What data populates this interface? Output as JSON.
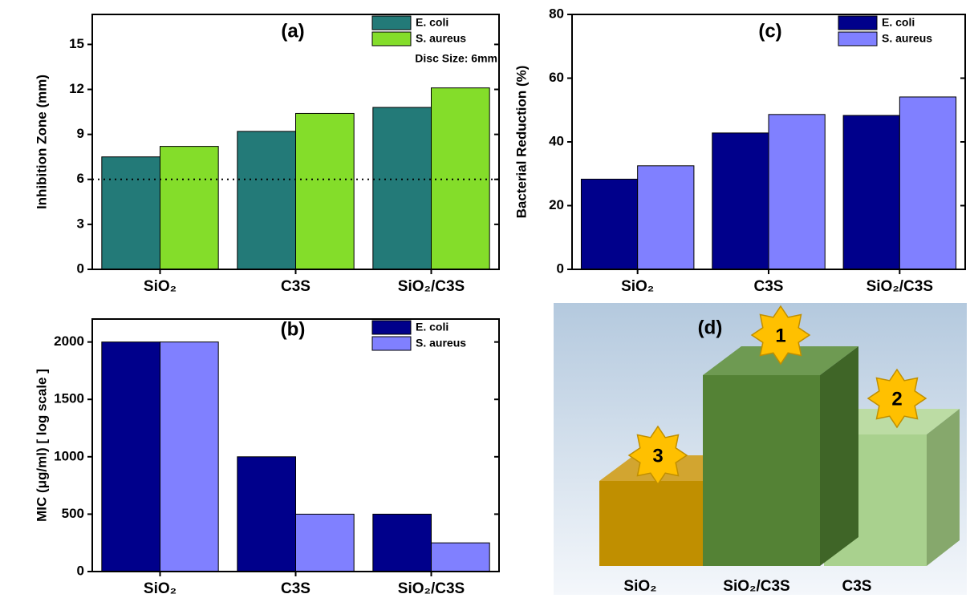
{
  "chart_data": [
    {
      "type": "bar",
      "title": "(a)",
      "ylabel": "Inhibition Zone (mm)",
      "categories": [
        "SiO₂",
        "C3S",
        "SiO₂/C3S"
      ],
      "series": [
        {
          "name": "E. coli",
          "color": "#237a78",
          "values": [
            7.5,
            9.2,
            10.8
          ]
        },
        {
          "name": "S. aureus",
          "color": "#84dd2a",
          "values": [
            8.2,
            10.4,
            12.1
          ]
        }
      ],
      "ylim": [
        0,
        17
      ],
      "yticks": [
        0,
        3,
        6,
        9,
        12,
        15
      ],
      "reference_line": 6,
      "annotation": "Disc Size: 6mm",
      "legend": "upper right"
    },
    {
      "type": "bar",
      "title": "(b)",
      "ylabel": "MIC (μg/ml) [ log scale ]",
      "categories": [
        "SiO₂",
        "C3S",
        "SiO₂/C3S"
      ],
      "series": [
        {
          "name": "E. coli",
          "color": "#00008b",
          "values": [
            2000,
            1000,
            500
          ]
        },
        {
          "name": "S. aureus",
          "color": "#8080ff",
          "values": [
            2000,
            500,
            250
          ]
        }
      ],
      "ylim": [
        0,
        2200
      ],
      "yticks": [
        0,
        500,
        1000,
        1500,
        2000
      ],
      "legend": "upper right"
    },
    {
      "type": "bar",
      "title": "(c)",
      "ylabel": "Bacterial Reduction (%)",
      "categories": [
        "SiO₂",
        "C3S",
        "SiO₂/C3S"
      ],
      "series": [
        {
          "name": "E. coli",
          "color": "#00008b",
          "values": [
            28.3,
            42.8,
            48.3
          ]
        },
        {
          "name": "S. aureus",
          "color": "#8080ff",
          "values": [
            32.5,
            48.6,
            54.1
          ]
        }
      ],
      "ylim": [
        0,
        80
      ],
      "yticks": [
        0,
        20,
        40,
        60,
        80
      ],
      "legend": "upper right"
    }
  ],
  "diagram": {
    "title": "(d)",
    "items": [
      {
        "label": "SiO₂",
        "rank": 3
      },
      {
        "label": "SiO₂/C3S",
        "rank": 1
      },
      {
        "label": "C3S",
        "rank": 2
      }
    ]
  }
}
